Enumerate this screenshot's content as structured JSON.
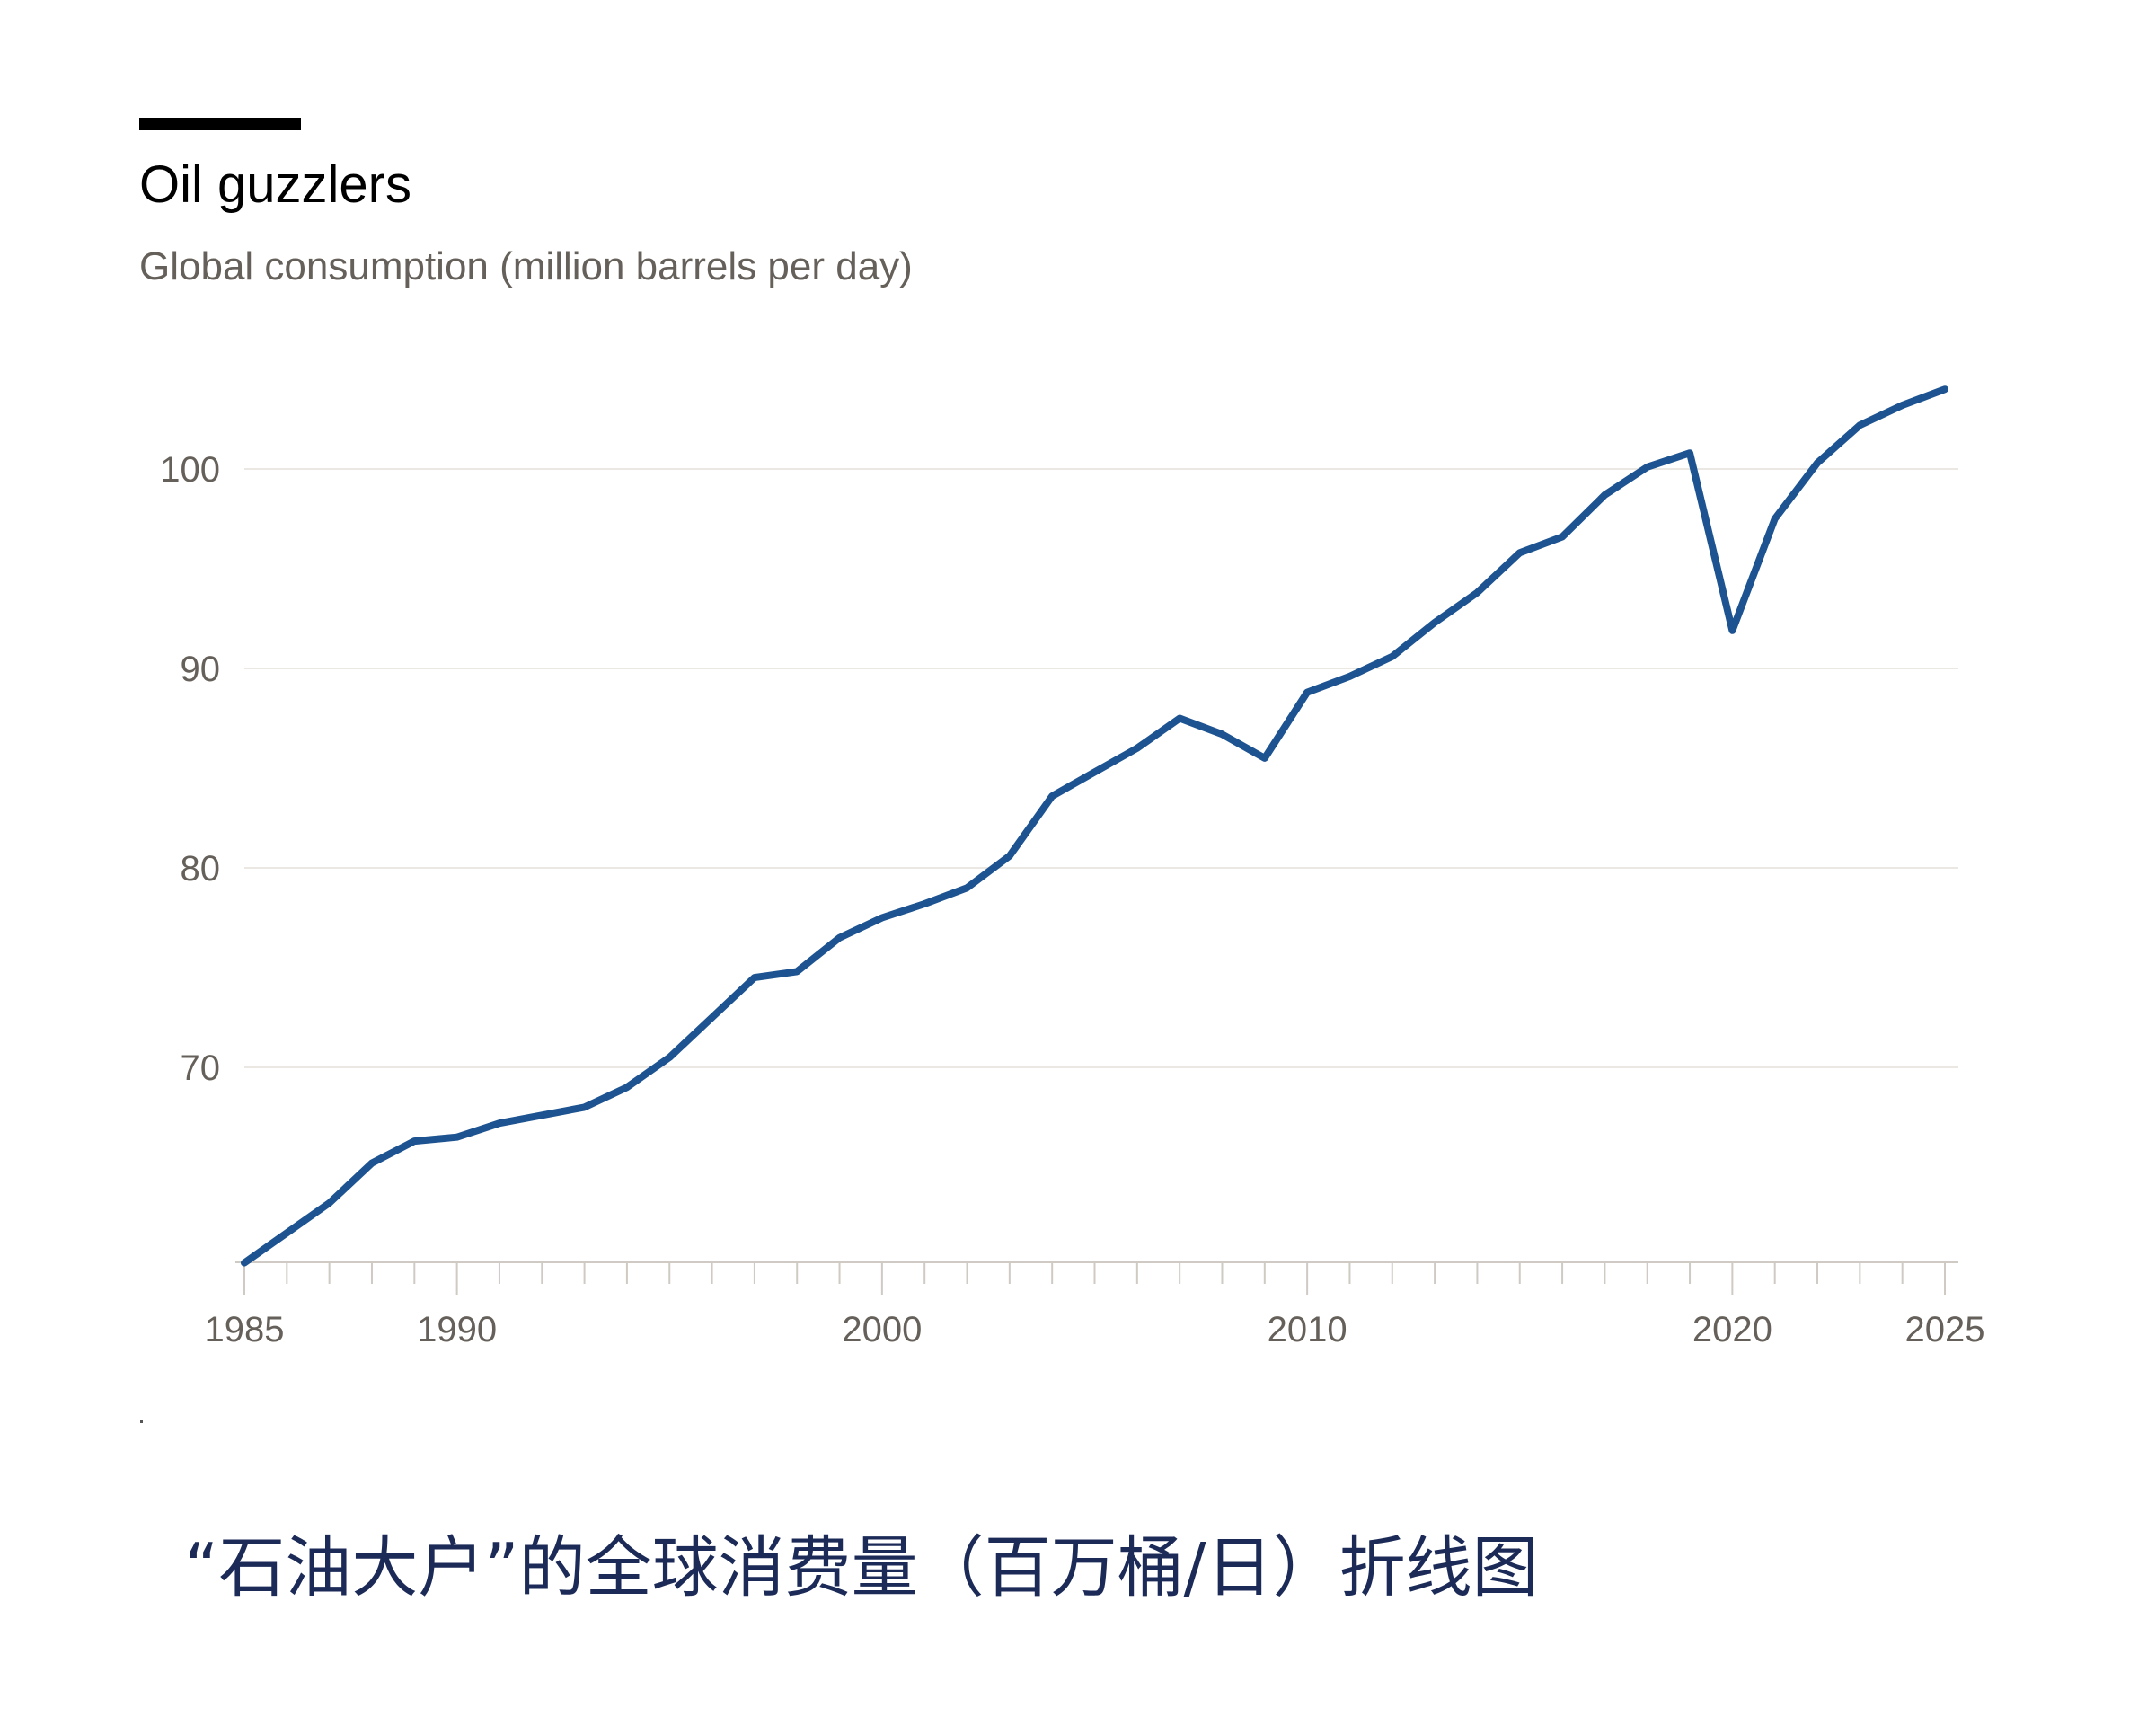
{
  "chart_data": {
    "type": "line",
    "title": "Oil guzzlers",
    "subtitle": "Global consumption (million barrels per day)",
    "xlabel": "",
    "ylabel": "",
    "xlim": [
      1985,
      2025
    ],
    "ylim": [
      60,
      104
    ],
    "yticks": [
      70,
      80,
      90,
      100
    ],
    "xticks": [
      1985,
      1990,
      2000,
      2010,
      2020,
      2025
    ],
    "grid": true,
    "legend": "none",
    "line_color": "#1d5390",
    "series": [
      {
        "x": [
          1985,
          1986,
          1987,
          1988,
          1989,
          1990,
          1991,
          1992,
          1993,
          1994,
          1995,
          1996,
          1997,
          1998,
          1999,
          2000,
          2001,
          2002,
          2003,
          2004,
          2005,
          2006,
          2007,
          2008,
          2009,
          2010,
          2011,
          2012,
          2013,
          2014,
          2015,
          2016,
          2017,
          2018,
          2019,
          2020,
          2021,
          2022,
          2023,
          2024,
          2025
        ],
        "values": [
          60.2,
          61.7,
          63.2,
          65.2,
          66.3,
          66.5,
          67.2,
          67.6,
          68.0,
          69.0,
          70.5,
          72.5,
          74.5,
          74.8,
          76.5,
          77.5,
          78.2,
          79.0,
          80.6,
          83.6,
          84.8,
          86.0,
          87.5,
          86.7,
          85.5,
          88.8,
          89.6,
          90.6,
          92.3,
          93.8,
          95.8,
          96.6,
          98.7,
          100.1,
          100.8,
          91.9,
          97.5,
          100.3,
          102.2,
          103.2,
          104.0
        ]
      }
    ]
  },
  "caption": "“石油大户”的全球消费量（百万桶/日）折线图",
  "colors": {
    "line": "#1d5390",
    "axis_text": "#66605a",
    "gridline": "#ebe8e4",
    "axis_line": "#cfcac4",
    "caption": "#1b2a57"
  }
}
